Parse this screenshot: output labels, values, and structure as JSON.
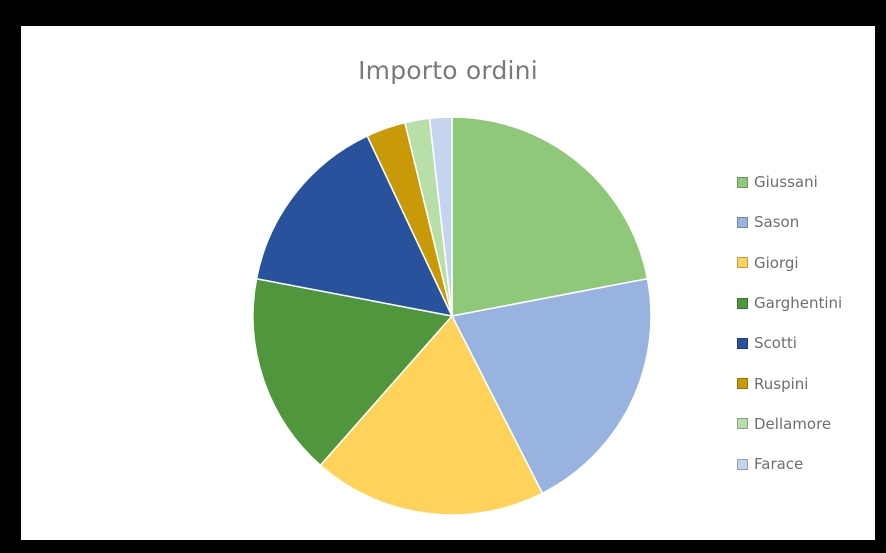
{
  "chart_data": {
    "type": "pie",
    "title": "Importo ordini",
    "legend_position": "right",
    "slices": [
      {
        "label": "Giussani",
        "value": 22.0,
        "color": "#8fc878"
      },
      {
        "label": "Sason",
        "value": 20.5,
        "color": "#98b3df"
      },
      {
        "label": "Giorgi",
        "value": 19.0,
        "color": "#ffd35a"
      },
      {
        "label": "Garghentini",
        "value": 16.5,
        "color": "#4f963c"
      },
      {
        "label": "Scotti",
        "value": 15.0,
        "color": "#28539c"
      },
      {
        "label": "Ruspini",
        "value": 3.2,
        "color": "#c99a08"
      },
      {
        "label": "Dellamore",
        "value": 2.0,
        "color": "#b9dfa9"
      },
      {
        "label": "Farace",
        "value": 1.8,
        "color": "#c5d5ef"
      }
    ]
  }
}
